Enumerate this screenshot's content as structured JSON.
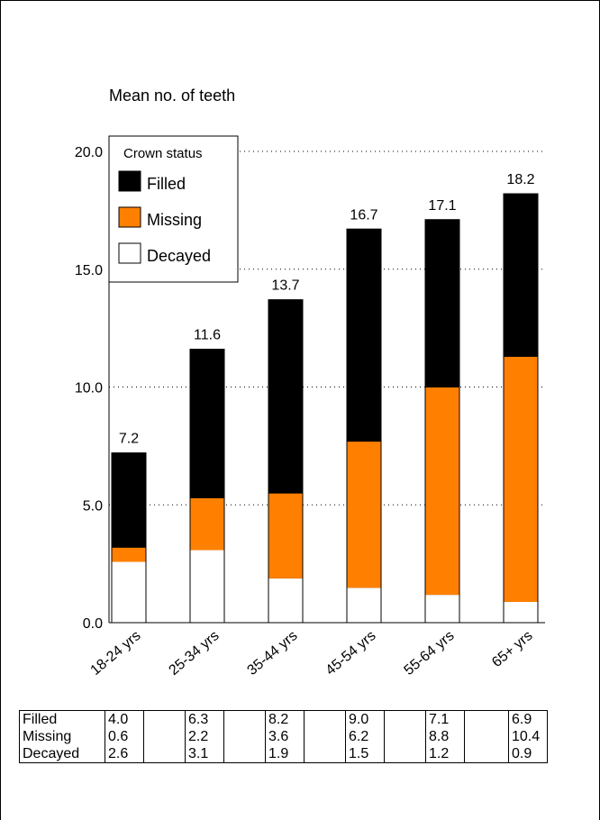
{
  "chart_data": {
    "type": "bar",
    "stacked": true,
    "title": "Mean no. of teeth",
    "categories": [
      "18-24 yrs",
      "25-34 yrs",
      "35-44 yrs",
      "45-54 yrs",
      "55-64 yrs",
      "65+ yrs"
    ],
    "series": [
      {
        "name": "Decayed",
        "color": "#ffffff",
        "values": [
          2.6,
          3.1,
          1.9,
          1.5,
          1.2,
          0.9
        ]
      },
      {
        "name": "Missing",
        "color": "#ff8000",
        "values": [
          0.6,
          2.2,
          3.6,
          6.2,
          8.8,
          10.4
        ]
      },
      {
        "name": "Filled",
        "color": "#000000",
        "values": [
          4.0,
          6.3,
          8.2,
          9.0,
          7.1,
          6.9
        ]
      }
    ],
    "totals": [
      "7.2",
      "11.6",
      "13.7",
      "16.7",
      "17.1",
      "18.2"
    ],
    "ylim": [
      0,
      20
    ],
    "yticks": [
      "0.0",
      "5.0",
      "10.0",
      "15.0",
      "20.0"
    ],
    "grid": "dotted horizontal",
    "legend": {
      "title": "Crown status",
      "placement": "top-left",
      "entries": [
        {
          "name": "Filled",
          "color": "#000000"
        },
        {
          "name": "Missing",
          "color": "#ff8000"
        },
        {
          "name": "Decayed",
          "color": "#ffffff"
        }
      ]
    }
  },
  "table": {
    "rows": [
      {
        "label": "Filled",
        "values": [
          "4.0",
          "6.3",
          "8.2",
          "9.0",
          "7.1",
          "6.9"
        ]
      },
      {
        "label": "Missing",
        "values": [
          "0.6",
          "2.2",
          "3.6",
          "6.2",
          "8.8",
          "10.4"
        ]
      },
      {
        "label": "Decayed",
        "values": [
          "2.6",
          "3.1",
          "1.9",
          "1.5",
          "1.2",
          "0.9"
        ]
      }
    ]
  }
}
